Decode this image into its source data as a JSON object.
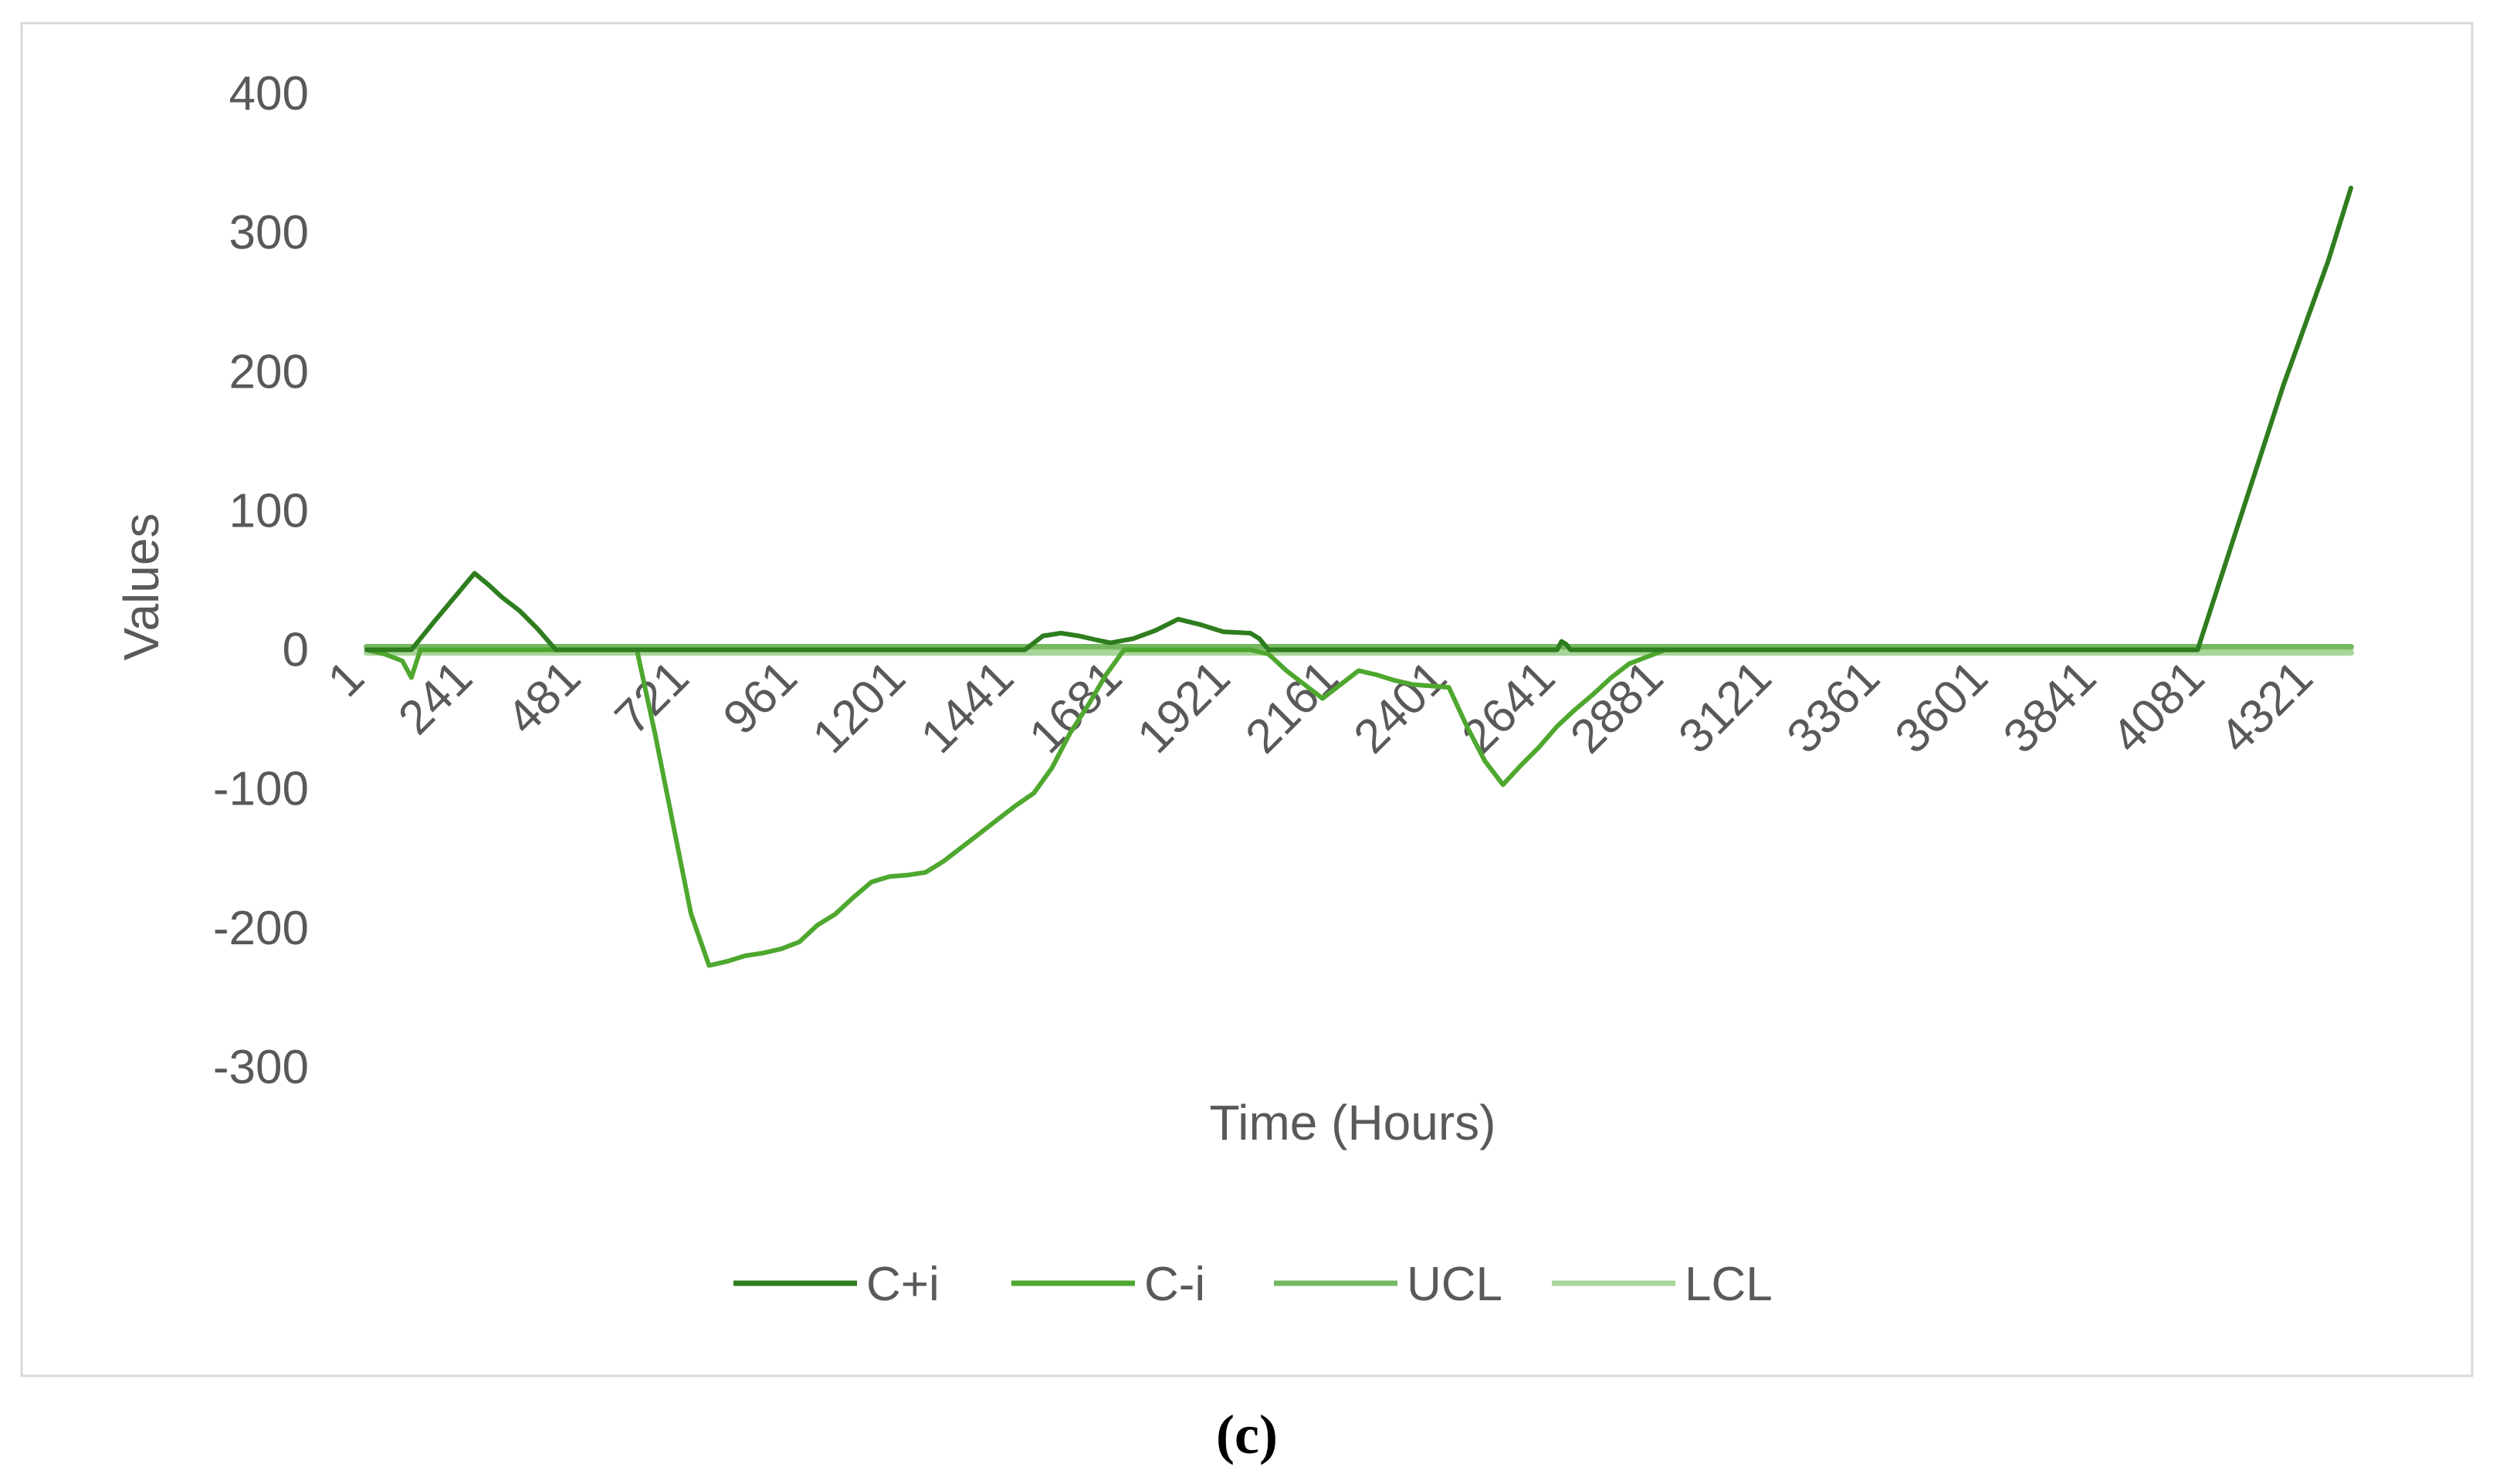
{
  "chart_data": {
    "type": "line",
    "title": "",
    "xlabel": "Time (Hours)",
    "ylabel": "Values",
    "caption": "(c)",
    "ylim": [
      -300,
      400
    ],
    "xlim": [
      1,
      4400
    ],
    "y_ticks": [
      -300,
      -200,
      -100,
      0,
      100,
      200,
      300,
      400
    ],
    "y_tick_labels": [
      "-300",
      "-200",
      "-100",
      "0",
      "100",
      "200",
      "300",
      "400"
    ],
    "x_ticks": [
      1,
      241,
      481,
      721,
      961,
      1201,
      1441,
      1681,
      1921,
      2161,
      2401,
      2641,
      2881,
      3121,
      3361,
      3601,
      3841,
      4081,
      4321
    ],
    "x_tick_labels": [
      "1",
      "241",
      "481",
      "721",
      "961",
      "1201",
      "1441",
      "1681",
      "1921",
      "2161",
      "2401",
      "2641",
      "2881",
      "3121",
      "3361",
      "3601",
      "3841",
      "4081",
      "4321"
    ],
    "grid": false,
    "legend_position": "bottom",
    "series": [
      {
        "name": "C+i",
        "color": "#2e7d1e",
        "x": [
          1,
          100,
          150,
          240,
          270,
          300,
          340,
          380,
          420,
          460,
          1460,
          1500,
          1540,
          1580,
          1620,
          1650,
          1700,
          1750,
          1800,
          1850,
          1900,
          1960,
          1980,
          2000,
          2640,
          2650,
          2660,
          2670,
          4060,
          4100,
          4150,
          4200,
          4250,
          4300,
          4350,
          4400
        ],
        "y": [
          0,
          0,
          20,
          55,
          47,
          38,
          28,
          15,
          0,
          0,
          0,
          10,
          12,
          10,
          7,
          5,
          8,
          14,
          22,
          18,
          13,
          12,
          8,
          0,
          0,
          6,
          4,
          0,
          0,
          40,
          90,
          140,
          190,
          235,
          280,
          332
        ]
      },
      {
        "name": "C-i",
        "color": "#4ea72e",
        "x": [
          1,
          40,
          80,
          100,
          120,
          600,
          640,
          680,
          720,
          760,
          800,
          840,
          880,
          920,
          960,
          1000,
          1040,
          1080,
          1120,
          1160,
          1200,
          1240,
          1280,
          1320,
          1360,
          1400,
          1440,
          1480,
          1520,
          1560,
          1600,
          1640,
          1680,
          1960,
          2000,
          2040,
          2080,
          2120,
          2160,
          2200,
          2240,
          2280,
          2320,
          2360,
          2400,
          2440,
          2480,
          2520,
          2560,
          2600,
          2640,
          2680,
          2720,
          2760,
          2800,
          2840,
          2880,
          2900
        ],
        "y": [
          0,
          -3,
          -8,
          -20,
          0,
          0,
          -60,
          -125,
          -190,
          -227,
          -224,
          -220,
          -218,
          -215,
          -210,
          -198,
          -190,
          -178,
          -167,
          -163,
          -162,
          -160,
          -152,
          -142,
          -132,
          -122,
          -112,
          -103,
          -85,
          -60,
          -40,
          -18,
          0,
          0,
          -3,
          -15,
          -25,
          -35,
          -25,
          -15,
          -18,
          -22,
          -25,
          -26,
          -27,
          -55,
          -80,
          -97,
          -83,
          -70,
          -55,
          -43,
          -32,
          -20,
          -10,
          -5,
          0,
          0
        ]
      },
      {
        "name": "UCL",
        "color": "#76b860",
        "x": [
          1,
          4400
        ],
        "y": [
          2,
          2
        ]
      },
      {
        "name": "LCL",
        "color": "#a9d49a",
        "x": [
          1,
          4400
        ],
        "y": [
          -2,
          -2
        ]
      }
    ]
  }
}
